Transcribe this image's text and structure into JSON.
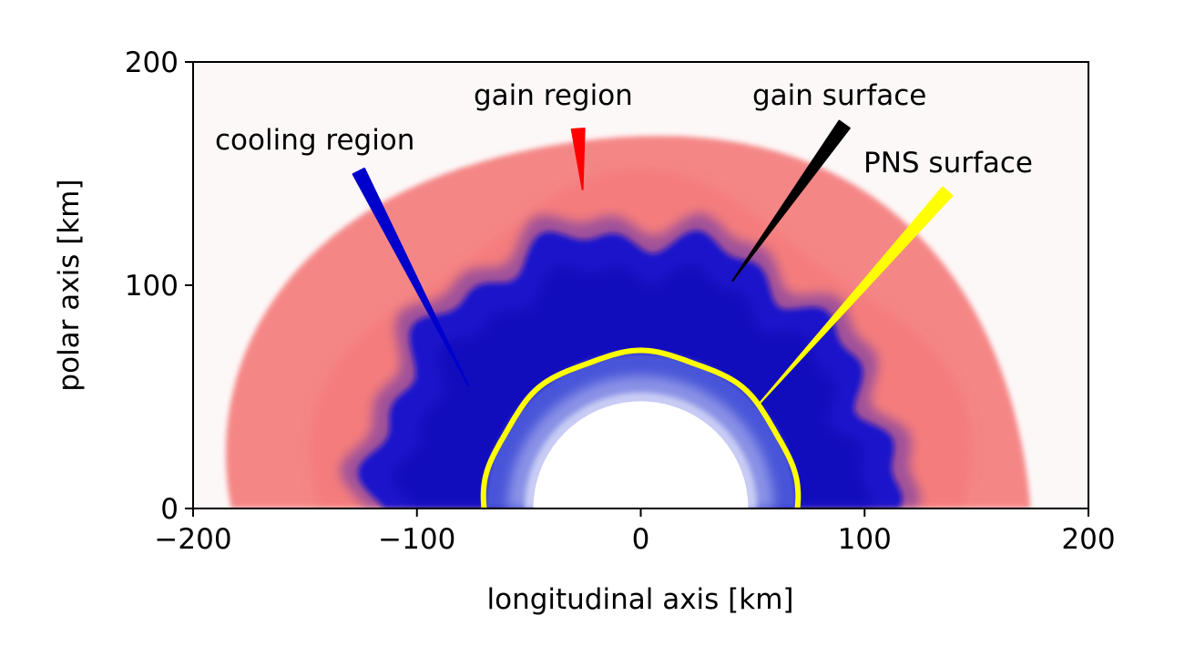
{
  "chart_data": {
    "type": "heatmap",
    "xlabel": "longitudinal axis [km]",
    "ylabel": "polar axis [km]",
    "xlim": [
      -200,
      200
    ],
    "ylim": [
      0,
      200
    ],
    "xticks": [
      -200,
      -100,
      0,
      100,
      200
    ],
    "xtick_labels": [
      "−200",
      "−100",
      "0",
      "100",
      "200"
    ],
    "yticks": [
      0,
      100,
      200
    ],
    "ytick_labels": [
      "0",
      "100",
      "200"
    ],
    "grid": false,
    "colors": {
      "gain": "#f25a5a",
      "cooling": "#0a0ad0",
      "pns_inner": "#c8ccf4",
      "background": "#fdf8f8",
      "pns_surface": "#ffff00",
      "gain_surface": "#000000"
    },
    "regions": {
      "core_radius": 48,
      "pns_surface_radius": 70,
      "gain_surface_radius": 118,
      "shock_radius": 175
    },
    "annotations": [
      {
        "id": "cooling",
        "text": "cooling region",
        "color": "#0000cc",
        "tip": [
          -77,
          55
        ],
        "tail": [
          -126,
          151
        ]
      },
      {
        "id": "gain",
        "text": "gain region",
        "color": "#ff0000",
        "tip": [
          -26,
          143
        ],
        "tail": [
          -28,
          170
        ]
      },
      {
        "id": "gain-surface",
        "text": "gain surface",
        "color": "#000000",
        "tip": [
          41,
          102
        ],
        "tail": [
          91,
          172
        ]
      },
      {
        "id": "pns-surface",
        "text": "PNS surface",
        "color": "#ffff00",
        "tip": [
          53,
          47
        ],
        "tail": [
          137,
          142
        ]
      }
    ]
  }
}
